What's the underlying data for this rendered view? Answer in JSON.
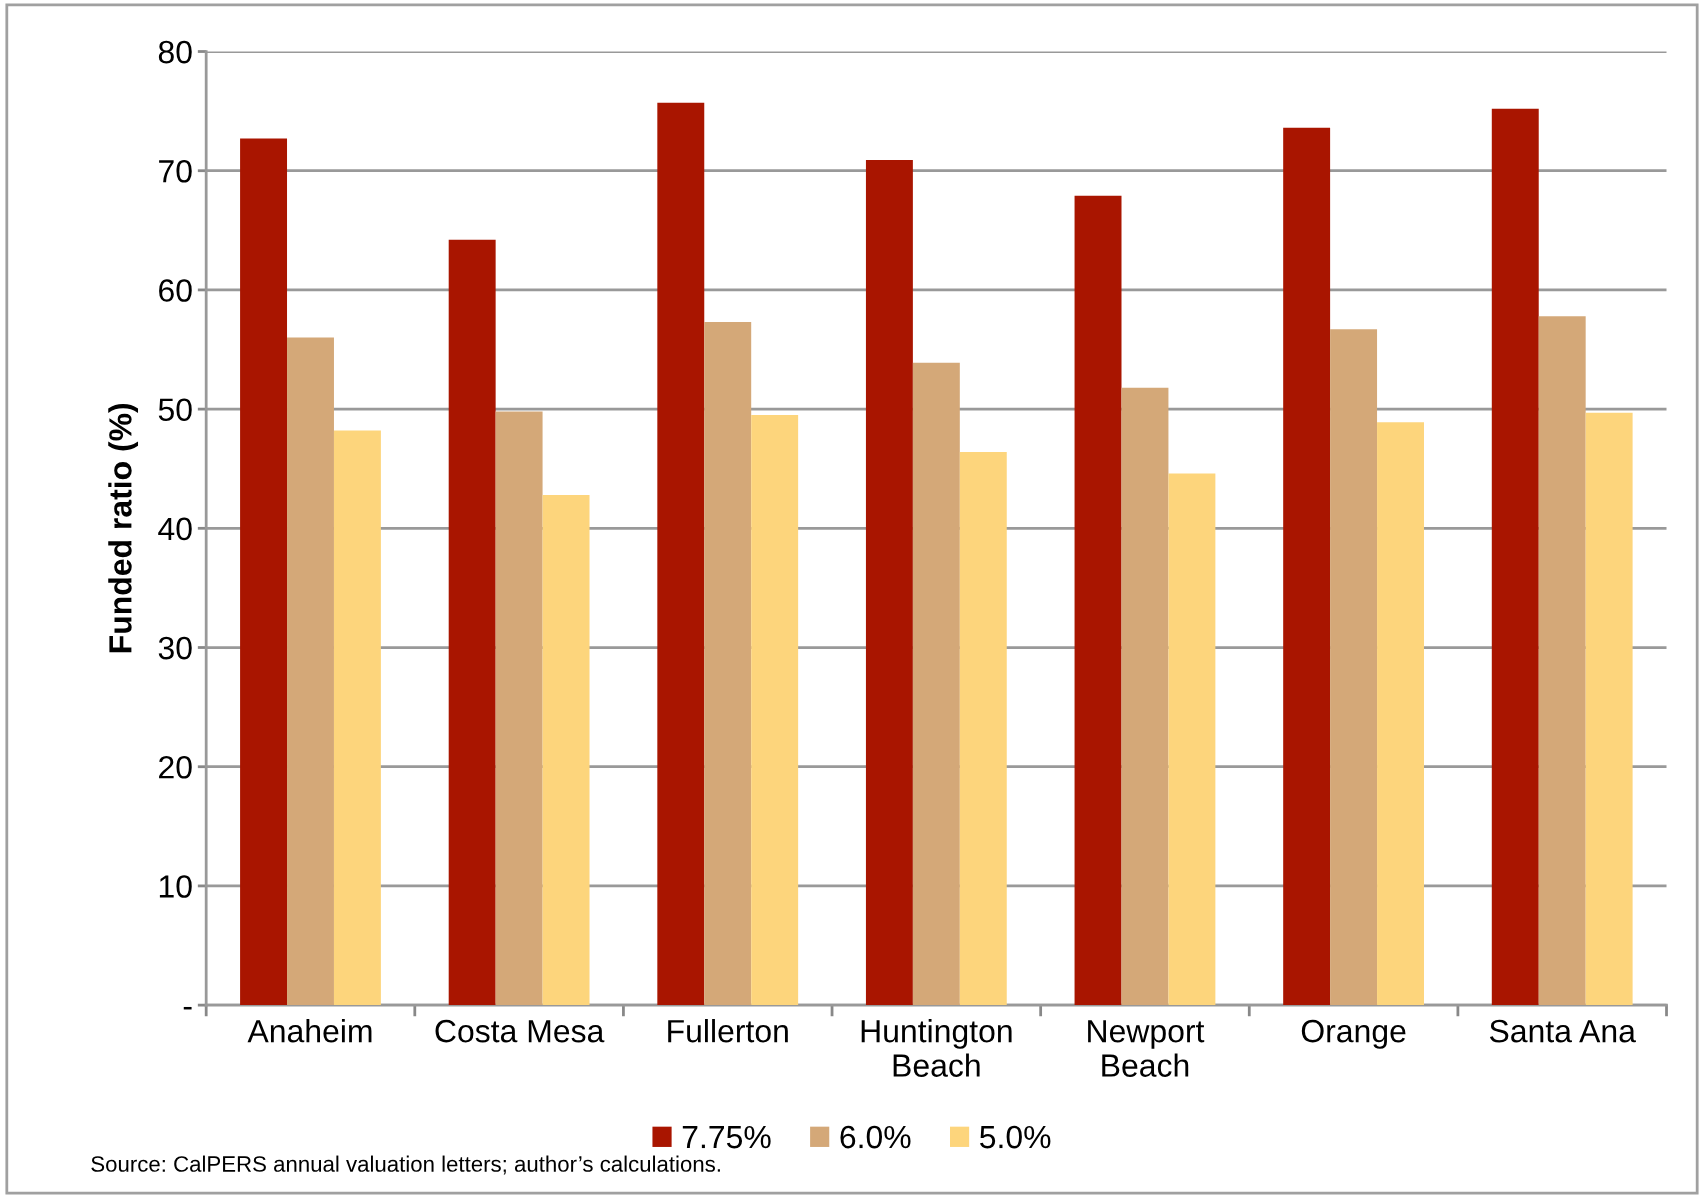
{
  "chart_data": {
    "type": "bar",
    "ylabel": "Funded ratio (%)",
    "categories": [
      "Anaheim",
      "Costa Mesa",
      "Fullerton",
      "Huntington\nBeach",
      "Newport\nBeach",
      "Orange",
      "Santa Ana"
    ],
    "series": [
      {
        "name": "7.75%",
        "color": "#a91500",
        "values": [
          72.7,
          64.2,
          75.7,
          70.9,
          67.9,
          73.6,
          75.2
        ]
      },
      {
        "name": "6.0%",
        "color": "#d4a878",
        "values": [
          56.0,
          49.8,
          57.3,
          53.9,
          51.8,
          56.7,
          57.8
        ]
      },
      {
        "name": "5.0%",
        "color": "#fdd57c",
        "values": [
          48.2,
          42.8,
          49.5,
          46.4,
          44.6,
          48.9,
          49.7
        ]
      }
    ],
    "ylim": [
      0,
      80
    ],
    "yticks": [
      {
        "value": 0,
        "label": "-"
      },
      10,
      20,
      30,
      40,
      50,
      60,
      70,
      80
    ],
    "grid": "y",
    "legend": "bottom",
    "annotations": [
      "Source: CalPERS annual valuation letters; author’s calculations."
    ]
  }
}
